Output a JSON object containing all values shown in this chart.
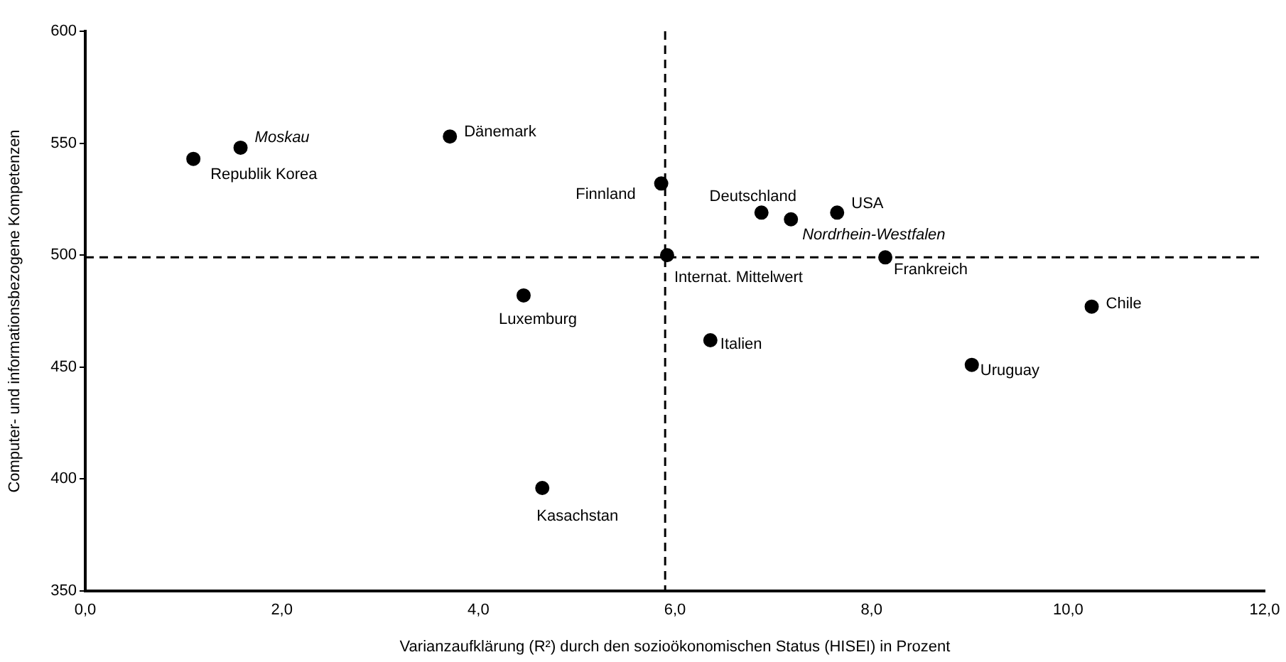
{
  "chart_data": {
    "type": "scatter",
    "xlabel": "Varianzaufklärung (R²) durch den sozioökonomischen Status (HISEI) in Prozent",
    "ylabel": "Computer- und informationsbezogene Kompetenzen",
    "x": [
      1.1,
      1.58,
      3.71,
      4.46,
      5.86,
      5.92,
      6.88,
      7.18,
      7.65,
      8.14,
      10.24,
      6.36,
      9.02,
      4.65
    ],
    "series": [
      {
        "color": "#000000",
        "values": [
          543,
          548,
          553,
          482,
          532,
          500,
          519,
          516,
          519,
          499,
          477,
          462,
          451,
          396
        ]
      }
    ],
    "marker": "circle",
    "grid": false,
    "legend": false,
    "xlim": [
      0,
      12
    ],
    "xticks": [
      {
        "value": 0,
        "label": "0,0"
      },
      {
        "value": 2,
        "label": "2,0"
      },
      {
        "value": 4,
        "label": "4,0"
      },
      {
        "value": 6,
        "label": "6,0"
      },
      {
        "value": 8,
        "label": "8,0"
      },
      {
        "value": 10,
        "label": "10,0"
      },
      {
        "value": 12,
        "label": "12,0"
      }
    ],
    "ylim": [
      350,
      600
    ],
    "yticks": [
      350,
      400,
      450,
      500,
      550,
      600
    ],
    "ref_lines": [
      {
        "axis": "x",
        "value": 5.9,
        "color": "#000000",
        "line_style": "dashed"
      },
      {
        "axis": "y",
        "value": 499,
        "color": "#000000",
        "line_style": "dashed"
      }
    ],
    "annotations": [
      {
        "text": "Republik Korea",
        "x": 1.1,
        "y": 543
      },
      {
        "text": "Moskau",
        "x": 1.58,
        "y": 548
      },
      {
        "text": "Dänemark",
        "x": 3.71,
        "y": 553
      },
      {
        "text": "Luxemburg",
        "x": 4.46,
        "y": 482
      },
      {
        "text": "Finnland",
        "x": 5.86,
        "y": 532
      },
      {
        "text": "Internat. Mittelwert",
        "x": 5.92,
        "y": 500
      },
      {
        "text": "Deutschland",
        "x": 6.88,
        "y": 519
      },
      {
        "text": "Nordrhein-Westfalen",
        "x": 7.18,
        "y": 516
      },
      {
        "text": "USA",
        "x": 7.65,
        "y": 519
      },
      {
        "text": "Frankreich",
        "x": 8.14,
        "y": 499
      },
      {
        "text": "Chile",
        "x": 10.24,
        "y": 477
      },
      {
        "text": "Italien",
        "x": 6.36,
        "y": 462
      },
      {
        "text": "Uruguay",
        "x": 9.02,
        "y": 451
      },
      {
        "text": "Kasachstan",
        "x": 4.65,
        "y": 396
      }
    ]
  }
}
